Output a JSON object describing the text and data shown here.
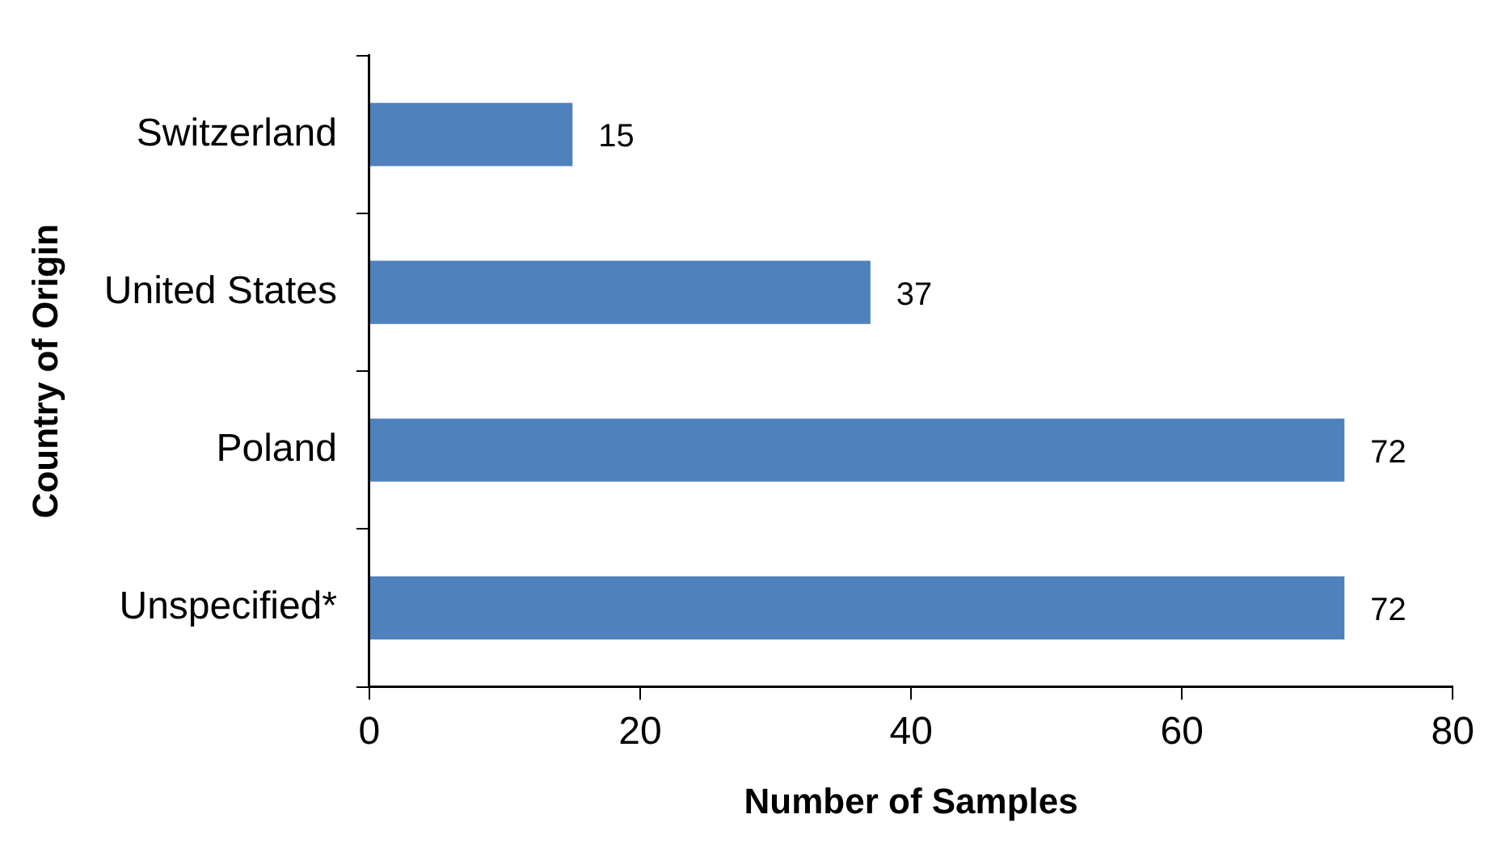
{
  "chart_data": {
    "type": "bar",
    "orientation": "horizontal",
    "xlabel": "Number of Samples",
    "ylabel": "Country of Origin",
    "categories": [
      "Switzerland",
      "United States",
      "Poland",
      "Unspecified*"
    ],
    "values": [
      15,
      37,
      72,
      72
    ],
    "color": "#4f81bd",
    "xlim": [
      0,
      80
    ],
    "xticks": [
      0,
      20,
      40,
      60,
      80
    ],
    "data_labels": true,
    "grid": false,
    "legend": false
  }
}
